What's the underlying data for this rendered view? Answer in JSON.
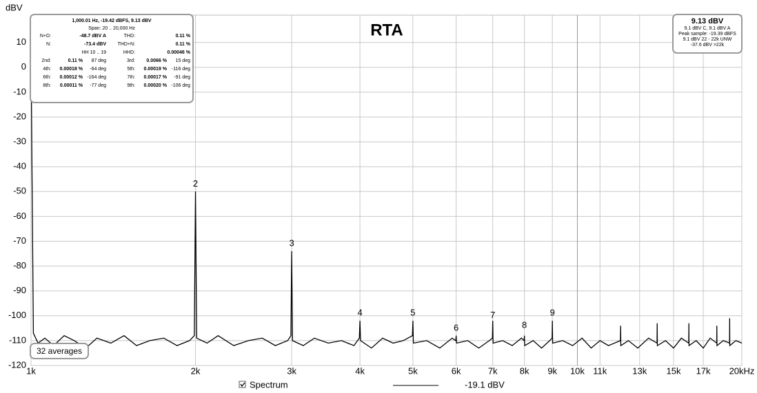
{
  "chart_data": {
    "type": "line",
    "title": "RTA",
    "ylabel": "dBV",
    "log_x": true,
    "grid": true,
    "xlim": [
      1000,
      20000
    ],
    "ylim": [
      -120,
      21
    ],
    "xticks": [
      {
        "value": 1000,
        "label": "1k"
      },
      {
        "value": 2000,
        "label": "2k"
      },
      {
        "value": 3000,
        "label": "3k"
      },
      {
        "value": 4000,
        "label": "4k"
      },
      {
        "value": 5000,
        "label": "5k"
      },
      {
        "value": 6000,
        "label": "6k"
      },
      {
        "value": 7000,
        "label": "7k"
      },
      {
        "value": 8000,
        "label": "8k"
      },
      {
        "value": 9000,
        "label": "9k"
      },
      {
        "value": 10000,
        "label": "10k"
      },
      {
        "value": 11000,
        "label": "11k"
      },
      {
        "value": 13000,
        "label": "13k"
      },
      {
        "value": 15000,
        "label": "15k"
      },
      {
        "value": 17000,
        "label": "17k"
      },
      {
        "value": 20000,
        "label": "20kHz"
      }
    ],
    "yticks": [
      -120,
      -110,
      -100,
      -90,
      -80,
      -70,
      -60,
      -50,
      -40,
      -30,
      -20,
      -10,
      0,
      10
    ],
    "x": [
      1000,
      1004,
      1010,
      1030,
      1060,
      1100,
      1150,
      1200,
      1260,
      1320,
      1400,
      1480,
      1560,
      1650,
      1750,
      1850,
      1950,
      1990,
      2000,
      2010,
      2100,
      2200,
      2350,
      2500,
      2650,
      2800,
      2950,
      2990,
      3000,
      3010,
      3150,
      3300,
      3500,
      3700,
      3900,
      3990,
      4000,
      4010,
      4200,
      4400,
      4600,
      4800,
      4990,
      5000,
      5010,
      5300,
      5600,
      5900,
      5990,
      6000,
      6010,
      6300,
      6600,
      6900,
      6990,
      7000,
      7010,
      7300,
      7600,
      7900,
      7990,
      8000,
      8010,
      8300,
      8600,
      8900,
      8990,
      9000,
      9010,
      9400,
      9800,
      10200,
      10600,
      11000,
      11400,
      11990,
      12000,
      12010,
      12400,
      12900,
      13500,
      13990,
      14000,
      14010,
      14500,
      15000,
      15500,
      15990,
      16000,
      16010,
      16500,
      17000,
      17500,
      17990,
      18000,
      18010,
      18500,
      18990,
      19000,
      19010,
      19500,
      20000
    ],
    "series": [
      {
        "name": "Spectrum",
        "color": "#000000",
        "values": [
          9,
          -40,
          -107,
          -111,
          -109,
          -112,
          -108,
          -110,
          -113,
          -109,
          -111,
          -108,
          -112,
          -110,
          -109,
          -112,
          -110,
          -108,
          -50,
          -109,
          -111,
          -108,
          -112,
          -110,
          -109,
          -112,
          -110,
          -108,
          -74,
          -110,
          -112,
          -109,
          -111,
          -110,
          -112,
          -109,
          -102,
          -110,
          -113,
          -109,
          -111,
          -110,
          -108,
          -102,
          -111,
          -110,
          -113,
          -109,
          -110,
          -108,
          -111,
          -110,
          -113,
          -110,
          -109,
          -102,
          -111,
          -110,
          -112,
          -109,
          -110,
          -108,
          -112,
          -110,
          -113,
          -110,
          -109,
          -102,
          -111,
          -110,
          -112,
          -109,
          -113,
          -110,
          -112,
          -110,
          -104,
          -112,
          -110,
          -113,
          -109,
          -111,
          -103,
          -112,
          -110,
          -113,
          -109,
          -111,
          -103,
          -112,
          -110,
          -113,
          -109,
          -111,
          -104,
          -112,
          -110,
          -111,
          -101,
          -112,
          -110,
          -111
        ]
      }
    ],
    "annotations": [
      {
        "text": "2",
        "x": 2000,
        "y": -47
      },
      {
        "text": "3",
        "x": 3000,
        "y": -71
      },
      {
        "text": "4",
        "x": 4000,
        "y": -99
      },
      {
        "text": "5",
        "x": 5000,
        "y": -99
      },
      {
        "text": "6",
        "x": 6000,
        "y": -105
      },
      {
        "text": "7",
        "x": 7000,
        "y": -100
      },
      {
        "text": "8",
        "x": 8000,
        "y": -104
      },
      {
        "text": "9",
        "x": 9000,
        "y": -99
      }
    ],
    "legend_level": "-19.1 dBV"
  },
  "info_panel": {
    "header": "1,000.01 Hz, -19.42 dBFS, 9.13 dBV",
    "span": "Span: 20 .. 20,000 Hz",
    "rows": [
      [
        "N+D:",
        "-48.7 dBV A",
        "THD:",
        "0.11 %"
      ],
      [
        "N:",
        "-73.4 dBV",
        "THD+N:",
        "0.11 %"
      ],
      [
        "HH 10 .. 19",
        "HHD:",
        "0.00046 %"
      ],
      [
        "2nd:",
        "0.11 %",
        "87 deg",
        "3rd:",
        "0.0066 %",
        "15 deg"
      ],
      [
        "4th:",
        "0.00018 %",
        "-64 deg",
        "5th:",
        "0.00019 %",
        "-116 deg"
      ],
      [
        "6th:",
        "0.00012 %",
        "-164 deg",
        "7th:",
        "0.00017 %",
        "-91 deg"
      ],
      [
        "8th:",
        "0.00011 %",
        "-77 deg",
        "9th:",
        "0.00020 %",
        "-106 deg"
      ]
    ]
  },
  "level_panel": {
    "title": "9.13 dBV",
    "lines": [
      "9.1 dBV C, 9.1 dBV A",
      "Peak sample: -19.39 dBFS",
      "9.1 dBV 22 - 22k UNW",
      "-37.6 dBV >22k"
    ]
  },
  "averages": "32 averages"
}
